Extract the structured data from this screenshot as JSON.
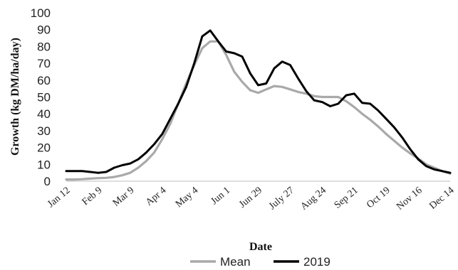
{
  "chart_data": {
    "type": "line",
    "title": "",
    "xlabel": "Date",
    "ylabel": "Growth (kg DM/ha/day)",
    "ylim": [
      0,
      100
    ],
    "yticks": [
      0,
      10,
      20,
      30,
      40,
      50,
      60,
      70,
      80,
      90,
      100
    ],
    "xtick_labels": [
      "Jan 12",
      "Feb 9",
      "Mar 9",
      "Apr 4",
      "May 4",
      "Jun 1",
      "Jun 29",
      "July 27",
      "Aug 24",
      "Sep 21",
      "Oct 19",
      "Nov 16",
      "Dec 14"
    ],
    "x": [
      "Jan 12",
      "Jan 19",
      "Jan 26",
      "Feb 2",
      "Feb 9",
      "Feb 16",
      "Feb 23",
      "Mar 2",
      "Mar 9",
      "Mar 16",
      "Mar 23",
      "Mar 30",
      "Apr 4",
      "Apr 11",
      "Apr 18",
      "Apr 25",
      "May 4",
      "May 11",
      "May 18",
      "May 25",
      "Jun 1",
      "Jun 8",
      "Jun 15",
      "Jun 22",
      "Jun 29",
      "Jul 6",
      "Jul 13",
      "Jul 20",
      "July 27",
      "Aug 3",
      "Aug 10",
      "Aug 17",
      "Aug 24",
      "Aug 31",
      "Sep 7",
      "Sep 14",
      "Sep 21",
      "Sep 28",
      "Oct 5",
      "Oct 12",
      "Oct 19",
      "Oct 26",
      "Nov 2",
      "Nov 9",
      "Nov 16",
      "Nov 23",
      "Nov 30",
      "Dec 7",
      "Dec 14"
    ],
    "grid": false,
    "legend_position": "bottom",
    "series": [
      {
        "name": "Mean",
        "color": "#a9a9a9",
        "values": [
          1,
          1,
          1.2,
          1.5,
          1.8,
          2,
          2.5,
          3.5,
          5,
          8,
          12,
          17,
          25,
          34,
          46,
          58,
          69,
          79,
          83,
          83,
          75,
          65,
          59,
          54,
          52.5,
          54.5,
          56.5,
          56,
          54.5,
          53,
          52,
          50.5,
          50,
          50,
          50,
          47.5,
          44,
          40,
          36.5,
          32.5,
          28,
          24,
          20,
          16.5,
          13.5,
          10,
          8,
          6,
          4.5
        ]
      },
      {
        "name": "2019",
        "color": "#000000",
        "values": [
          6,
          6,
          6,
          5.5,
          5,
          5.5,
          8,
          9.5,
          10.5,
          13,
          17,
          22,
          28,
          37,
          46,
          56,
          70,
          86,
          89.5,
          83,
          77,
          76,
          74,
          64,
          57,
          58,
          67,
          71,
          69,
          61,
          53.5,
          48,
          47,
          44.5,
          46,
          51,
          52,
          46.5,
          46,
          42,
          37,
          32,
          26,
          19,
          13,
          9,
          7,
          6,
          5
        ]
      }
    ]
  }
}
